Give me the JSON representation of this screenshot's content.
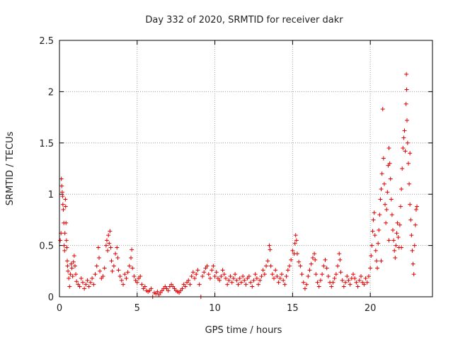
{
  "chart_data": {
    "type": "scatter",
    "title": "Day 332 of 2020, SRMTID for receiver dakr",
    "xlabel": "GPS time / hours",
    "ylabel": "SRMTID / TECUs",
    "xlim": [
      0,
      24
    ],
    "ylim": [
      0,
      2.5
    ],
    "x_ticks": [
      0,
      5,
      10,
      15,
      20
    ],
    "x_tick_labels": [
      "0",
      "5",
      "10",
      "15",
      "20"
    ],
    "y_ticks": [
      0,
      0.5,
      1,
      1.5,
      2,
      2.5
    ],
    "y_tick_labels": [
      "0",
      "0.5",
      "1",
      "1.5",
      "2",
      "2.5"
    ],
    "grid": true,
    "marker": "+",
    "color": "#e00000",
    "series": [
      {
        "name": "SRMTID",
        "points": [
          [
            0.05,
            0.55
          ],
          [
            0.1,
            0.62
          ],
          [
            0.12,
            1.15
          ],
          [
            0.15,
            1.08
          ],
          [
            0.18,
            1.02
          ],
          [
            0.2,
            0.98
          ],
          [
            0.22,
            0.9
          ],
          [
            0.25,
            0.85
          ],
          [
            0.28,
            0.72
          ],
          [
            0.3,
            0.5
          ],
          [
            0.33,
            0.45
          ],
          [
            0.35,
            0.62
          ],
          [
            0.38,
            0.95
          ],
          [
            0.4,
            0.88
          ],
          [
            0.42,
            0.72
          ],
          [
            0.45,
            0.55
          ],
          [
            0.48,
            0.48
          ],
          [
            0.5,
            0.35
          ],
          [
            0.52,
            0.3
          ],
          [
            0.55,
            0.25
          ],
          [
            0.6,
            0.18
          ],
          [
            0.65,
            0.1
          ],
          [
            0.7,
            0.22
          ],
          [
            0.75,
            0.32
          ],
          [
            0.8,
            0.28
          ],
          [
            0.85,
            0.2
          ],
          [
            0.9,
            0.34
          ],
          [
            0.95,
            0.4
          ],
          [
            1.0,
            0.3
          ],
          [
            1.05,
            0.22
          ],
          [
            1.1,
            0.15
          ],
          [
            1.2,
            0.12
          ],
          [
            1.3,
            0.1
          ],
          [
            1.4,
            0.18
          ],
          [
            1.5,
            0.14
          ],
          [
            1.6,
            0.08
          ],
          [
            1.7,
            0.12
          ],
          [
            1.8,
            0.16
          ],
          [
            1.9,
            0.1
          ],
          [
            2.0,
            0.14
          ],
          [
            2.1,
            0.18
          ],
          [
            2.2,
            0.12
          ],
          [
            2.3,
            0.22
          ],
          [
            2.4,
            0.3
          ],
          [
            2.5,
            0.48
          ],
          [
            2.55,
            0.38
          ],
          [
            2.6,
            0.25
          ],
          [
            2.7,
            0.18
          ],
          [
            2.8,
            0.2
          ],
          [
            2.9,
            0.28
          ],
          [
            3.0,
            0.5
          ],
          [
            3.05,
            0.55
          ],
          [
            3.1,
            0.45
          ],
          [
            3.15,
            0.6
          ],
          [
            3.2,
            0.52
          ],
          [
            3.25,
            0.64
          ],
          [
            3.3,
            0.48
          ],
          [
            3.35,
            0.35
          ],
          [
            3.4,
            0.25
          ],
          [
            3.5,
            0.3
          ],
          [
            3.6,
            0.42
          ],
          [
            3.7,
            0.48
          ],
          [
            3.75,
            0.38
          ],
          [
            3.8,
            0.26
          ],
          [
            3.9,
            0.2
          ],
          [
            4.0,
            0.16
          ],
          [
            4.1,
            0.12
          ],
          [
            4.2,
            0.22
          ],
          [
            4.3,
            0.18
          ],
          [
            4.4,
            0.24
          ],
          [
            4.5,
            0.3
          ],
          [
            4.6,
            0.38
          ],
          [
            4.65,
            0.46
          ],
          [
            4.7,
            0.28
          ],
          [
            4.8,
            0.2
          ],
          [
            4.9,
            0.16
          ],
          [
            5.0,
            0.14
          ],
          [
            5.1,
            0.18
          ],
          [
            5.2,
            0.2
          ],
          [
            5.3,
            0.12
          ],
          [
            5.4,
            0.08
          ],
          [
            5.5,
            0.1
          ],
          [
            5.6,
            0.06
          ],
          [
            5.7,
            0.05
          ],
          [
            5.8,
            0.06
          ],
          [
            5.9,
            0.08
          ],
          [
            6.0,
            0.0
          ],
          [
            6.1,
            0.04
          ],
          [
            6.2,
            0.03
          ],
          [
            6.3,
            0.05
          ],
          [
            6.4,
            0.02
          ],
          [
            6.5,
            0.04
          ],
          [
            6.6,
            0.06
          ],
          [
            6.7,
            0.08
          ],
          [
            6.8,
            0.1
          ],
          [
            6.9,
            0.08
          ],
          [
            7.0,
            0.06
          ],
          [
            7.1,
            0.1
          ],
          [
            7.2,
            0.12
          ],
          [
            7.3,
            0.1
          ],
          [
            7.4,
            0.08
          ],
          [
            7.5,
            0.06
          ],
          [
            7.6,
            0.05
          ],
          [
            7.7,
            0.04
          ],
          [
            7.8,
            0.06
          ],
          [
            7.9,
            0.08
          ],
          [
            8.0,
            0.12
          ],
          [
            8.1,
            0.1
          ],
          [
            8.2,
            0.14
          ],
          [
            8.3,
            0.16
          ],
          [
            8.4,
            0.12
          ],
          [
            8.5,
            0.2
          ],
          [
            8.6,
            0.24
          ],
          [
            8.7,
            0.18
          ],
          [
            8.8,
            0.22
          ],
          [
            8.9,
            0.26
          ],
          [
            9.0,
            0.12
          ],
          [
            9.1,
            0.0
          ],
          [
            9.2,
            0.2
          ],
          [
            9.3,
            0.24
          ],
          [
            9.4,
            0.28
          ],
          [
            9.5,
            0.3
          ],
          [
            9.6,
            0.22
          ],
          [
            9.7,
            0.18
          ],
          [
            9.8,
            0.26
          ],
          [
            9.9,
            0.3
          ],
          [
            10.0,
            0.2
          ],
          [
            10.1,
            0.24
          ],
          [
            10.2,
            0.18
          ],
          [
            10.3,
            0.16
          ],
          [
            10.4,
            0.2
          ],
          [
            10.5,
            0.26
          ],
          [
            10.6,
            0.22
          ],
          [
            10.7,
            0.18
          ],
          [
            10.8,
            0.12
          ],
          [
            10.9,
            0.16
          ],
          [
            11.0,
            0.2
          ],
          [
            11.1,
            0.14
          ],
          [
            11.2,
            0.18
          ],
          [
            11.3,
            0.22
          ],
          [
            11.4,
            0.16
          ],
          [
            11.5,
            0.12
          ],
          [
            11.6,
            0.18
          ],
          [
            11.7,
            0.14
          ],
          [
            11.8,
            0.2
          ],
          [
            11.9,
            0.16
          ],
          [
            12.0,
            0.12
          ],
          [
            12.1,
            0.18
          ],
          [
            12.2,
            0.2
          ],
          [
            12.3,
            0.14
          ],
          [
            12.4,
            0.1
          ],
          [
            12.5,
            0.16
          ],
          [
            12.6,
            0.22
          ],
          [
            12.7,
            0.18
          ],
          [
            12.8,
            0.12
          ],
          [
            12.9,
            0.16
          ],
          [
            13.0,
            0.2
          ],
          [
            13.1,
            0.26
          ],
          [
            13.2,
            0.22
          ],
          [
            13.3,
            0.3
          ],
          [
            13.4,
            0.35
          ],
          [
            13.5,
            0.5
          ],
          [
            13.55,
            0.46
          ],
          [
            13.6,
            0.3
          ],
          [
            13.7,
            0.22
          ],
          [
            13.8,
            0.18
          ],
          [
            13.9,
            0.26
          ],
          [
            14.0,
            0.2
          ],
          [
            14.1,
            0.14
          ],
          [
            14.2,
            0.18
          ],
          [
            14.3,
            0.22
          ],
          [
            14.4,
            0.16
          ],
          [
            14.5,
            0.12
          ],
          [
            14.6,
            0.2
          ],
          [
            14.7,
            0.26
          ],
          [
            14.8,
            0.3
          ],
          [
            14.9,
            0.36
          ],
          [
            15.0,
            0.45
          ],
          [
            15.1,
            0.42
          ],
          [
            15.15,
            0.52
          ],
          [
            15.2,
            0.6
          ],
          [
            15.25,
            0.55
          ],
          [
            15.3,
            0.42
          ],
          [
            15.4,
            0.34
          ],
          [
            15.5,
            0.3
          ],
          [
            15.6,
            0.22
          ],
          [
            15.7,
            0.14
          ],
          [
            15.8,
            0.08
          ],
          [
            15.9,
            0.12
          ],
          [
            16.0,
            0.2
          ],
          [
            16.1,
            0.26
          ],
          [
            16.2,
            0.32
          ],
          [
            16.3,
            0.38
          ],
          [
            16.4,
            0.42
          ],
          [
            16.45,
            0.36
          ],
          [
            16.5,
            0.22
          ],
          [
            16.6,
            0.14
          ],
          [
            16.7,
            0.1
          ],
          [
            16.8,
            0.16
          ],
          [
            16.9,
            0.22
          ],
          [
            17.0,
            0.3
          ],
          [
            17.1,
            0.36
          ],
          [
            17.2,
            0.28
          ],
          [
            17.3,
            0.2
          ],
          [
            17.4,
            0.14
          ],
          [
            17.5,
            0.1
          ],
          [
            17.6,
            0.14
          ],
          [
            17.7,
            0.18
          ],
          [
            17.8,
            0.22
          ],
          [
            17.9,
            0.3
          ],
          [
            18.0,
            0.42
          ],
          [
            18.05,
            0.36
          ],
          [
            18.1,
            0.24
          ],
          [
            18.2,
            0.16
          ],
          [
            18.3,
            0.1
          ],
          [
            18.4,
            0.14
          ],
          [
            18.5,
            0.2
          ],
          [
            18.6,
            0.16
          ],
          [
            18.7,
            0.12
          ],
          [
            18.8,
            0.18
          ],
          [
            18.9,
            0.22
          ],
          [
            19.0,
            0.18
          ],
          [
            19.1,
            0.14
          ],
          [
            19.2,
            0.1
          ],
          [
            19.3,
            0.16
          ],
          [
            19.4,
            0.2
          ],
          [
            19.5,
            0.14
          ],
          [
            19.6,
            0.12
          ],
          [
            19.7,
            0.18
          ],
          [
            19.8,
            0.14
          ],
          [
            19.9,
            0.2
          ],
          [
            20.0,
            0.28
          ],
          [
            20.05,
            0.4
          ],
          [
            20.1,
            0.5
          ],
          [
            20.15,
            0.64
          ],
          [
            20.2,
            0.75
          ],
          [
            20.25,
            0.82
          ],
          [
            20.3,
            0.6
          ],
          [
            20.35,
            0.45
          ],
          [
            20.4,
            0.35
          ],
          [
            20.45,
            0.28
          ],
          [
            20.5,
            0.52
          ],
          [
            20.55,
            0.65
          ],
          [
            20.6,
            0.8
          ],
          [
            20.65,
            0.95
          ],
          [
            20.7,
            1.05
          ],
          [
            20.75,
            1.2
          ],
          [
            20.8,
            1.83
          ],
          [
            20.85,
            1.35
          ],
          [
            20.9,
            1.1
          ],
          [
            20.95,
            0.9
          ],
          [
            21.0,
            0.72
          ],
          [
            21.05,
            0.85
          ],
          [
            21.1,
            1.02
          ],
          [
            21.15,
            1.28
          ],
          [
            21.2,
            1.45
          ],
          [
            21.25,
            1.3
          ],
          [
            21.3,
            1.15
          ],
          [
            21.35,
            0.95
          ],
          [
            21.4,
            0.8
          ],
          [
            21.45,
            0.65
          ],
          [
            21.5,
            0.55
          ],
          [
            21.55,
            0.45
          ],
          [
            21.6,
            0.38
          ],
          [
            21.65,
            0.5
          ],
          [
            21.7,
            0.62
          ],
          [
            21.75,
            0.72
          ],
          [
            21.8,
            0.58
          ],
          [
            21.85,
            0.48
          ],
          [
            21.9,
            0.7
          ],
          [
            21.95,
            0.88
          ],
          [
            22.0,
            1.05
          ],
          [
            22.05,
            1.25
          ],
          [
            22.1,
            1.45
          ],
          [
            22.15,
            1.55
          ],
          [
            22.2,
            1.62
          ],
          [
            22.25,
            1.42
          ],
          [
            22.3,
            1.88
          ],
          [
            22.32,
            2.17
          ],
          [
            22.34,
            2.02
          ],
          [
            22.36,
            1.72
          ],
          [
            22.4,
            1.5
          ],
          [
            22.45,
            1.3
          ],
          [
            22.5,
            1.1
          ],
          [
            22.55,
            0.9
          ],
          [
            22.6,
            0.75
          ],
          [
            22.65,
            0.6
          ],
          [
            22.7,
            0.45
          ],
          [
            22.75,
            0.32
          ],
          [
            22.8,
            0.22
          ],
          [
            22.85,
            0.5
          ],
          [
            22.9,
            0.7
          ],
          [
            22.95,
            0.85
          ],
          [
            23.0,
            0.88
          ],
          [
            22.55,
            1.4
          ],
          [
            21.2,
            0.55
          ],
          [
            20.7,
            0.35
          ],
          [
            22.0,
            0.48
          ]
        ]
      }
    ]
  }
}
